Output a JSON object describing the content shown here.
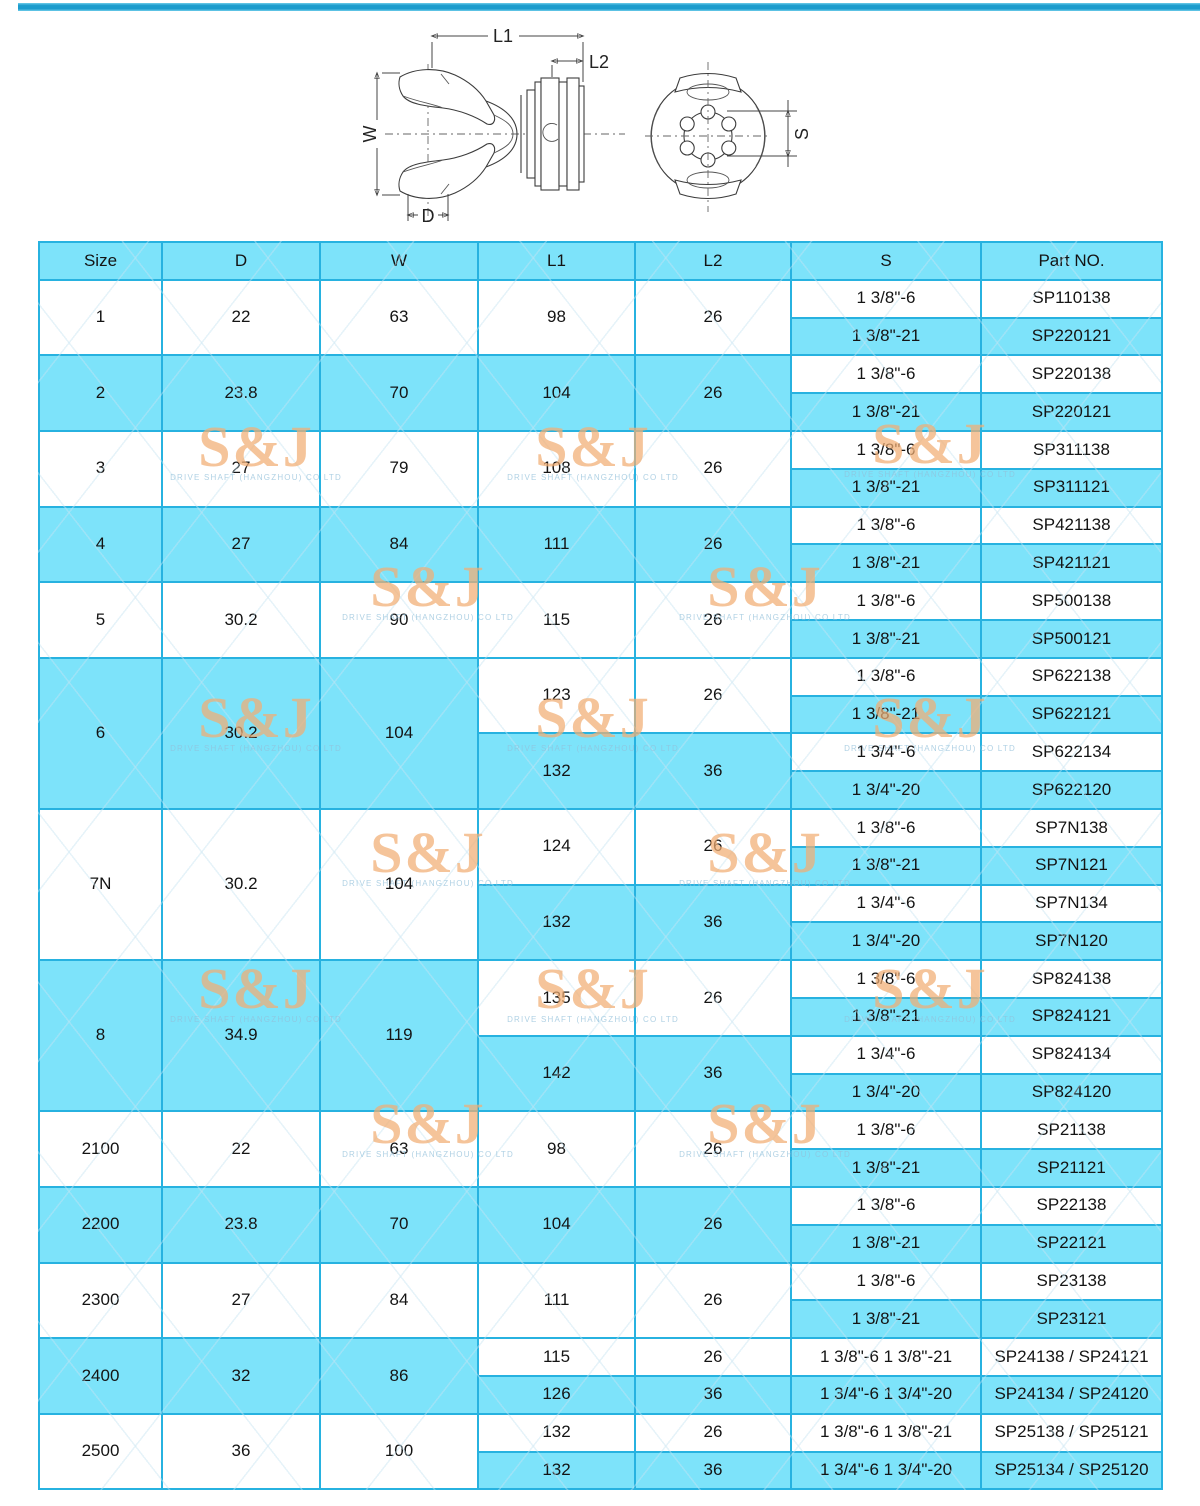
{
  "colors": {
    "cell_fill": "#7de3fa",
    "grid_line": "#27b2e0",
    "top_bar": "#1b9ccd",
    "watermark_text": "#f2ae74",
    "watermark_caption": "#92c0da"
  },
  "watermark": {
    "text": "S&J",
    "caption": "DRIVE SHAFT (HANGZHOU) CO LTD"
  },
  "diagram": {
    "labels": {
      "l1": "L1",
      "l2": "L2",
      "w": "W",
      "d": "D",
      "s": "S"
    }
  },
  "table": {
    "headers": [
      "Size",
      "D",
      "W",
      "L1",
      "L2",
      "S",
      "Part NO."
    ],
    "groups": [
      {
        "size": "1",
        "d": "22",
        "w": "63",
        "bg": "white",
        "spans": [
          {
            "l1": "98",
            "l2": "26",
            "bg": "white",
            "rows": [
              {
                "s": "1 3/8\"-6",
                "part": "SP110138",
                "bg": "white"
              },
              {
                "s": "1 3/8\"-21",
                "part": "SP220121",
                "bg": "cyan"
              }
            ]
          }
        ]
      },
      {
        "size": "2",
        "d": "23.8",
        "w": "70",
        "bg": "cyan",
        "spans": [
          {
            "l1": "104",
            "l2": "26",
            "bg": "cyan",
            "rows": [
              {
                "s": "1 3/8\"-6",
                "part": "SP220138",
                "bg": "white"
              },
              {
                "s": "1 3/8\"-21",
                "part": "SP220121",
                "bg": "cyan"
              }
            ]
          }
        ]
      },
      {
        "size": "3",
        "d": "27",
        "w": "79",
        "bg": "white",
        "spans": [
          {
            "l1": "108",
            "l2": "26",
            "bg": "white",
            "rows": [
              {
                "s": "1 3/8\"-6",
                "part": "SP311138",
                "bg": "white"
              },
              {
                "s": "1 3/8\"-21",
                "part": "SP311121",
                "bg": "cyan"
              }
            ]
          }
        ]
      },
      {
        "size": "4",
        "d": "27",
        "w": "84",
        "bg": "cyan",
        "spans": [
          {
            "l1": "111",
            "l2": "26",
            "bg": "cyan",
            "rows": [
              {
                "s": "1 3/8\"-6",
                "part": "SP421138",
                "bg": "white"
              },
              {
                "s": "1 3/8\"-21",
                "part": "SP421121",
                "bg": "cyan"
              }
            ]
          }
        ]
      },
      {
        "size": "5",
        "d": "30.2",
        "w": "90",
        "bg": "white",
        "spans": [
          {
            "l1": "115",
            "l2": "26",
            "bg": "white",
            "rows": [
              {
                "s": "1 3/8\"-6",
                "part": "SP500138",
                "bg": "white"
              },
              {
                "s": "1 3/8\"-21",
                "part": "SP500121",
                "bg": "cyan"
              }
            ]
          }
        ]
      },
      {
        "size": "6",
        "d": "30.2",
        "w": "104",
        "bg": "cyan",
        "spans": [
          {
            "l1": "123",
            "l2": "26",
            "bg": "white",
            "rows": [
              {
                "s": "1 3/8\"-6",
                "part": "SP622138",
                "bg": "white"
              },
              {
                "s": "1 3/8\"-21",
                "part": "SP622121",
                "bg": "cyan"
              }
            ]
          },
          {
            "l1": "132",
            "l2": "36",
            "bg": "cyan",
            "rows": [
              {
                "s": "1 3/4\"-6",
                "part": "SP622134",
                "bg": "white"
              },
              {
                "s": "1 3/4\"-20",
                "part": "SP622120",
                "bg": "cyan"
              }
            ]
          }
        ]
      },
      {
        "size": "7N",
        "d": "30.2",
        "w": "104",
        "bg": "white",
        "spans": [
          {
            "l1": "124",
            "l2": "26",
            "bg": "white",
            "rows": [
              {
                "s": "1 3/8\"-6",
                "part": "SP7N138",
                "bg": "white"
              },
              {
                "s": "1 3/8\"-21",
                "part": "SP7N121",
                "bg": "cyan"
              }
            ]
          },
          {
            "l1": "132",
            "l2": "36",
            "bg": "cyan",
            "rows": [
              {
                "s": "1 3/4\"-6",
                "part": "SP7N134",
                "bg": "white"
              },
              {
                "s": "1 3/4\"-20",
                "part": "SP7N120",
                "bg": "cyan"
              }
            ]
          }
        ]
      },
      {
        "size": "8",
        "d": "34.9",
        "w": "119",
        "bg": "cyan",
        "spans": [
          {
            "l1": "135",
            "l2": "26",
            "bg": "white",
            "rows": [
              {
                "s": "1 3/8\"-6",
                "part": "SP824138",
                "bg": "white"
              },
              {
                "s": "1 3/8\"-21",
                "part": "SP824121",
                "bg": "cyan"
              }
            ]
          },
          {
            "l1": "142",
            "l2": "36",
            "bg": "cyan",
            "rows": [
              {
                "s": "1 3/4\"-6",
                "part": "SP824134",
                "bg": "white"
              },
              {
                "s": "1 3/4\"-20",
                "part": "SP824120",
                "bg": "cyan"
              }
            ]
          }
        ]
      },
      {
        "size": "2100",
        "d": "22",
        "w": "63",
        "bg": "white",
        "spans": [
          {
            "l1": "98",
            "l2": "26",
            "bg": "white",
            "rows": [
              {
                "s": "1 3/8\"-6",
                "part": "SP21138",
                "bg": "white"
              },
              {
                "s": "1 3/8\"-21",
                "part": "SP21121",
                "bg": "cyan"
              }
            ]
          }
        ]
      },
      {
        "size": "2200",
        "d": "23.8",
        "w": "70",
        "bg": "cyan",
        "spans": [
          {
            "l1": "104",
            "l2": "26",
            "bg": "cyan",
            "rows": [
              {
                "s": "1 3/8\"-6",
                "part": "SP22138",
                "bg": "white"
              },
              {
                "s": "1 3/8\"-21",
                "part": "SP22121",
                "bg": "cyan"
              }
            ]
          }
        ]
      },
      {
        "size": "2300",
        "d": "27",
        "w": "84",
        "bg": "white",
        "spans": [
          {
            "l1": "111",
            "l2": "26",
            "bg": "white",
            "rows": [
              {
                "s": "1 3/8\"-6",
                "part": "SP23138",
                "bg": "white"
              },
              {
                "s": "1 3/8\"-21",
                "part": "SP23121",
                "bg": "cyan"
              }
            ]
          }
        ]
      },
      {
        "size": "2400",
        "d": "32",
        "w": "86",
        "bg": "cyan",
        "spans": [
          {
            "l1": "115",
            "l2": "26",
            "bg": "white",
            "rows": [
              {
                "s": "1 3/8\"-6  1 3/8\"-21",
                "part": "SP24138 / SP24121",
                "bg": "white"
              }
            ]
          },
          {
            "l1": "126",
            "l2": "36",
            "bg": "cyan",
            "rows": [
              {
                "s": "1 3/4\"-6  1 3/4\"-20",
                "part": "SP24134 / SP24120",
                "bg": "cyan"
              }
            ]
          }
        ]
      },
      {
        "size": "2500",
        "d": "36",
        "w": "100",
        "bg": "white",
        "spans": [
          {
            "l1": "132",
            "l2": "26",
            "bg": "white",
            "rows": [
              {
                "s": "1 3/8\"-6  1 3/8\"-21",
                "part": "SP25138 / SP25121",
                "bg": "white"
              }
            ]
          },
          {
            "l1": "132",
            "l2": "36",
            "bg": "cyan",
            "rows": [
              {
                "s": "1 3/4\"-6  1 3/4\"-20",
                "part": "SP25134 / SP25120",
                "bg": "cyan"
              }
            ]
          }
        ]
      }
    ]
  }
}
